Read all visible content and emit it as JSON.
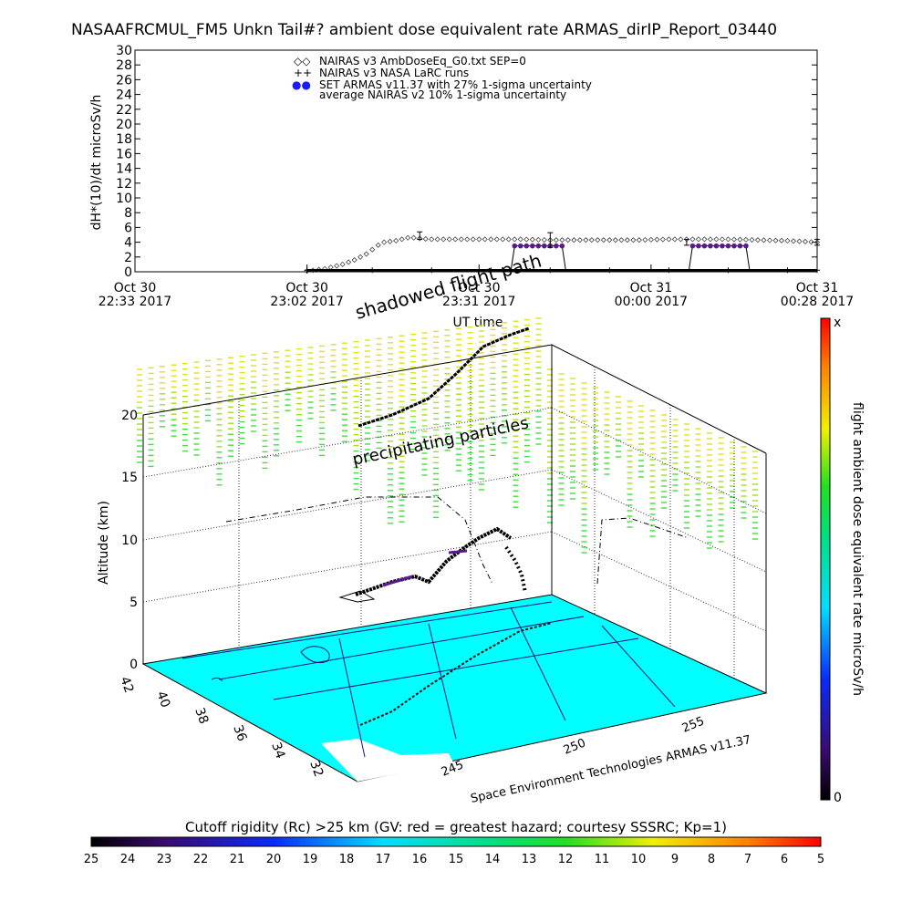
{
  "page": {
    "title": "NASAAFRCMUL_FM5 Unkn Tail#? ambient dose equivalent rate ARMAS_dirIP_Report_03440"
  },
  "chart_data": [
    {
      "type": "scatter",
      "title": "NASAAFRCMUL_FM5 Unkn Tail#? ambient dose equivalent rate ARMAS_dirIP_Report_03440",
      "xlabel": "UT time",
      "ylabel": "dH*(10)/dt microSv/h",
      "ylim": [
        0,
        30
      ],
      "yticks": [
        0,
        2,
        4,
        6,
        8,
        10,
        12,
        14,
        16,
        18,
        20,
        22,
        24,
        26,
        28,
        30
      ],
      "xticks": [
        {
          "top": "Oct 30",
          "bottom": "22:33 2017"
        },
        {
          "top": "Oct 30",
          "bottom": "23:02 2017"
        },
        {
          "top": "Oct 30",
          "bottom": "23:31 2017"
        },
        {
          "top": "Oct 31",
          "bottom": "00:00 2017"
        },
        {
          "top": "Oct 31",
          "bottom": "00:28 2017"
        }
      ],
      "x_minutes_from_start": [
        0,
        29,
        58,
        87,
        115
      ],
      "legend": [
        {
          "marker": "◇◇",
          "label": "NAIRAS v3 AmbDoseEq_G0.txt SEP=0"
        },
        {
          "marker": "++",
          "label": "NAIRAS v3 NASA LaRC runs"
        },
        {
          "marker": "●●",
          "label": "SET ARMAS v11.37 with 27% 1-sigma uncertainty"
        },
        {
          "marker": "",
          "label": "average NAIRAS v2 10% 1-sigma uncertainty"
        }
      ],
      "grid": false,
      "series": [
        {
          "name": "NAIRAS v3 AmbDoseEq_G0.txt SEP=0",
          "x": [
            29,
            30,
            31,
            32,
            33,
            34,
            35,
            36,
            37,
            38,
            39,
            40,
            41,
            42,
            43,
            44,
            45,
            46,
            47,
            48,
            50,
            55,
            60,
            65,
            70,
            75,
            80,
            85,
            90,
            95,
            100,
            105,
            110,
            115
          ],
          "y": [
            0.1,
            0.2,
            0.3,
            0.4,
            0.6,
            0.8,
            1.0,
            1.3,
            1.6,
            2.0,
            2.4,
            3.0,
            3.6,
            4.0,
            4.1,
            4.2,
            4.4,
            4.6,
            4.6,
            4.5,
            4.4,
            4.4,
            4.4,
            4.4,
            4.3,
            4.3,
            4.3,
            4.3,
            4.4,
            4.4,
            4.4,
            4.3,
            4.2,
            4.0
          ]
        },
        {
          "name": "NAIRAS v3 NASA LaRC runs",
          "x": [
            29,
            40,
            50,
            60,
            70,
            80,
            90,
            100,
            110,
            115
          ],
          "y": [
            0.1,
            0.1,
            0.1,
            0.1,
            0.1,
            0.1,
            0.1,
            0.1,
            0.1,
            0.1
          ]
        },
        {
          "name": "SET ARMAS v11.37 with 27% 1-sigma uncertainty",
          "x": [
            64,
            65,
            66,
            67,
            68,
            69,
            70,
            71,
            72,
            94,
            95,
            96,
            97,
            98,
            99,
            100,
            101,
            102,
            103
          ],
          "y": [
            3.5,
            3.5,
            3.5,
            3.5,
            3.5,
            3.5,
            3.5,
            3.5,
            3.5,
            3.5,
            3.5,
            3.5,
            3.5,
            3.5,
            3.5,
            3.5,
            3.5,
            3.5,
            3.5
          ]
        },
        {
          "name": "average NAIRAS v2 10% 1-sigma uncertainty",
          "x": [
            48,
            70,
            93,
            115
          ],
          "y": [
            4.9,
            4.3,
            4.0,
            4.0
          ],
          "err": [
            0.5,
            1.0,
            0.4,
            0.4
          ]
        }
      ]
    },
    {
      "type": "scatter",
      "zlabel": "Altitude (km)",
      "zticks": [
        0,
        5,
        10,
        15,
        20
      ],
      "lat_ticks": [
        32,
        34,
        36,
        38,
        40,
        42
      ],
      "lon_ticks": [
        245,
        250,
        255
      ],
      "annotations": [
        "shadowed flight path",
        "precipitating particles"
      ],
      "caption": "Space Environment Technologies ARMAS v11.37",
      "dose_colorbar": {
        "label": "flight ambient dose equivalent rate microSv/h",
        "top": "x",
        "bottom": "0"
      },
      "rigidity_colorbar": {
        "label": "Cutoff rigidity (Rc) >25 km (GV: red = greatest hazard; courtesy SSSRC; Kp=1)",
        "ticks": [
          25,
          24,
          23,
          22,
          21,
          20,
          19,
          18,
          17,
          16,
          15,
          14,
          13,
          12,
          11,
          10,
          9,
          8,
          7,
          6,
          5
        ]
      }
    }
  ],
  "colors": {
    "surface": "#00ffff",
    "armas": "#5a1a8c",
    "text": "#000000"
  }
}
